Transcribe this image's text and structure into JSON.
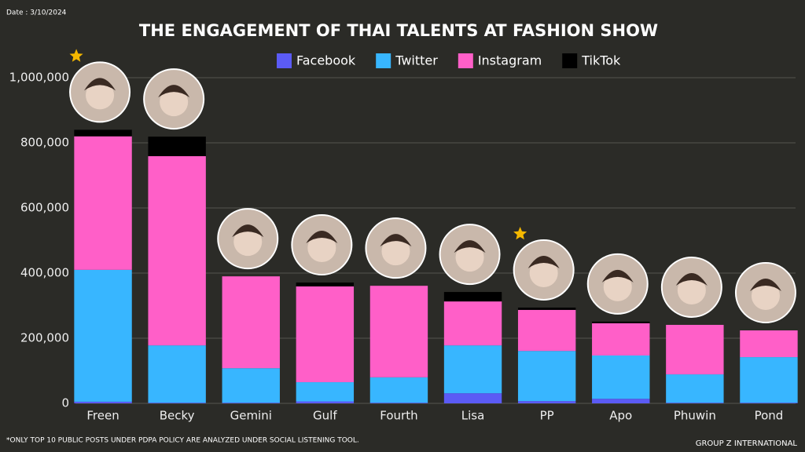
{
  "chart_data": {
    "type": "stacked_bar",
    "title": "THE ENGAGEMENT OF THAI TALENTS AT FASHION SHOW",
    "date": "Date : 3/10/2024",
    "note": "*ONLY TOP 10 PUBLIC POSTS UNDER PDPA POLICY ARE ANALYZED UNDER SOCIAL LISTENING TOOL.",
    "source": "GROUP Z INTERNATIONAL",
    "categories": [
      "Freen",
      "Becky",
      "Gemini",
      "Gulf",
      "Fourth",
      "Lisa",
      "PP",
      "Apo",
      "Phuwin",
      "Pond"
    ],
    "series": [
      {
        "name": "Facebook",
        "color": "#5b5bf5",
        "values": [
          5000,
          2000,
          2000,
          6000,
          2000,
          31000,
          7000,
          14000,
          2000,
          2000
        ]
      },
      {
        "name": "Twitter",
        "color": "#38b6ff",
        "values": [
          405000,
          176000,
          106000,
          59000,
          78000,
          147000,
          154000,
          133000,
          87000,
          140000
        ]
      },
      {
        "name": "Instagram",
        "color": "#ff5fc8",
        "values": [
          410000,
          581000,
          282000,
          294000,
          281000,
          135000,
          126000,
          99000,
          152000,
          82000
        ]
      },
      {
        "name": "TikTok",
        "color": "#000000",
        "values": [
          20000,
          60000,
          0,
          12000,
          0,
          29000,
          7000,
          5000,
          0,
          0
        ]
      }
    ],
    "ylim": [
      0,
      1000000
    ],
    "yticks": [
      0,
      {
        "value": 200000,
        "label": "200,000"
      },
      {
        "value": 400000,
        "label": "400,000"
      },
      {
        "value": 600000,
        "label": "600,000"
      },
      {
        "value": 800000,
        "label": "800,000"
      },
      {
        "value": 1000000,
        "label": "1,000,000"
      }
    ],
    "grid": true,
    "legend": "top"
  }
}
